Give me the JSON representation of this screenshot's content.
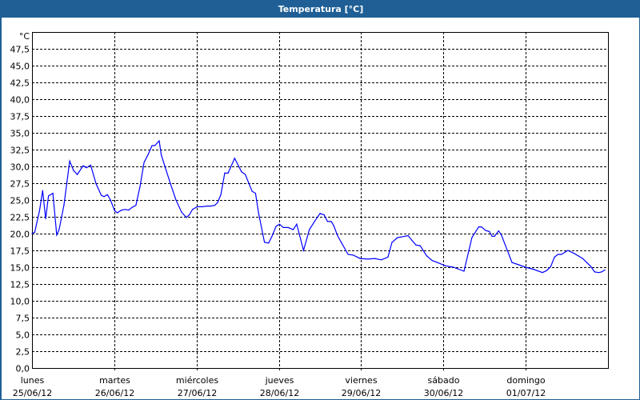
{
  "window": {
    "title": "Temperatura [°C]"
  },
  "chart_data": {
    "type": "line",
    "title": "Temperatura [°C]",
    "ylabel": "°C",
    "xlabel": "",
    "ylim": [
      0,
      50
    ],
    "xlim_hours": [
      0,
      168
    ],
    "grid": true,
    "line_color": "#0000ff",
    "yticks": [
      "0,0",
      "2,5",
      "5,0",
      "7,5",
      "10,0",
      "12,5",
      "15,0",
      "17,5",
      "20,0",
      "22,5",
      "25,0",
      "27,5",
      "30,0",
      "32,5",
      "35,0",
      "37,5",
      "40,0",
      "42,5",
      "45,0",
      "47,5"
    ],
    "ytick_values": [
      0,
      2.5,
      5,
      7.5,
      10,
      12.5,
      15,
      17.5,
      20,
      22.5,
      25,
      27.5,
      30,
      32.5,
      35,
      37.5,
      40,
      42.5,
      45,
      47.5
    ],
    "xticks": [
      {
        "day": "lunes",
        "date": "25/06/12"
      },
      {
        "day": "martes",
        "date": "26/06/12"
      },
      {
        "day": "miércoles",
        "date": "27/06/12"
      },
      {
        "day": "jueves",
        "date": "28/06/12"
      },
      {
        "day": "viernes",
        "date": "29/06/12"
      },
      {
        "day": "sábado",
        "date": "30/06/12"
      },
      {
        "day": "domingo",
        "date": "01/07/12"
      }
    ],
    "series": [
      {
        "name": "Temperatura",
        "x_hours": [
          0,
          0.8,
          2.2,
          3.1,
          4.0,
          4.8,
          6.1,
          7.2,
          7.9,
          9.3,
          11.0,
          12.1,
          13.2,
          14.9,
          15.9,
          17.1,
          18.7,
          20.2,
          21.0,
          22.0,
          22.9,
          24.1,
          24.9,
          26.1,
          27.2,
          28.2,
          29.2,
          30.3,
          31.5,
          32.7,
          33.8,
          35.0,
          35.8,
          37.1,
          37.7,
          38.9,
          40.4,
          42.0,
          43.6,
          45.0,
          45.9,
          46.8,
          48.2,
          49.8,
          50.9,
          52.1,
          53.3,
          54.1,
          55.1,
          56.2,
          57.2,
          59.1,
          61.1,
          62.2,
          64.2,
          65.2,
          66.1,
          67.8,
          69.0,
          70.0,
          71.2,
          72.2,
          73.3,
          74.7,
          76.2,
          77.2,
          79.2,
          80.9,
          82.4,
          84.0,
          85.2,
          86.2,
          87.3,
          88.0,
          89.1,
          90.2,
          92.2,
          93.7,
          95.7,
          98.0,
          99.9,
          101.9,
          103.8,
          105.0,
          106.6,
          107.7,
          109.7,
          110.8,
          112.0,
          113.2,
          115.1,
          116.7,
          118.2,
          120.6,
          122.9,
          126.0,
          128.3,
          130.3,
          131.1,
          132.2,
          133.4,
          134.2,
          134.9,
          136.1,
          136.9,
          140.0,
          142.3,
          143.9,
          146.2,
          148.9,
          150.1,
          151.3,
          152.4,
          153.4,
          154.4,
          156.3,
          158.3,
          160.6,
          161.8,
          163.0,
          164.1,
          165.3,
          166.1,
          167.1
        ],
        "values": [
          20.0,
          20.2,
          23.4,
          26.4,
          22.2,
          25.6,
          26.0,
          19.8,
          20.6,
          24.2,
          30.8,
          29.4,
          28.8,
          30.1,
          29.8,
          30.2,
          27.4,
          25.7,
          25.5,
          25.8,
          25.0,
          23.4,
          23.1,
          23.5,
          23.6,
          23.5,
          23.9,
          24.2,
          27.0,
          30.6,
          31.7,
          33.1,
          33.1,
          33.8,
          31.7,
          29.8,
          27.4,
          25.0,
          23.2,
          22.4,
          22.8,
          23.6,
          24.0,
          24.0,
          24.1,
          24.1,
          24.2,
          24.6,
          25.8,
          29.0,
          29.0,
          31.2,
          29.2,
          28.8,
          26.3,
          26.0,
          23.0,
          18.7,
          18.6,
          19.6,
          21.1,
          21.4,
          20.9,
          20.9,
          20.6,
          21.4,
          17.5,
          20.6,
          21.8,
          23.0,
          22.8,
          21.8,
          21.8,
          21.2,
          19.7,
          18.7,
          16.9,
          16.8,
          16.3,
          16.2,
          16.3,
          16.1,
          16.5,
          18.7,
          19.4,
          19.5,
          19.7,
          19.0,
          18.3,
          18.2,
          16.7,
          16.0,
          15.7,
          15.2,
          15.0,
          14.4,
          19.4,
          21.0,
          21.0,
          20.5,
          20.3,
          19.6,
          19.6,
          20.4,
          19.8,
          15.7,
          15.3,
          15.0,
          14.7,
          14.2,
          14.5,
          15.1,
          16.5,
          16.9,
          16.9,
          17.5,
          17.0,
          16.3,
          15.7,
          15.1,
          14.3,
          14.2,
          14.3,
          14.6
        ]
      }
    ]
  }
}
